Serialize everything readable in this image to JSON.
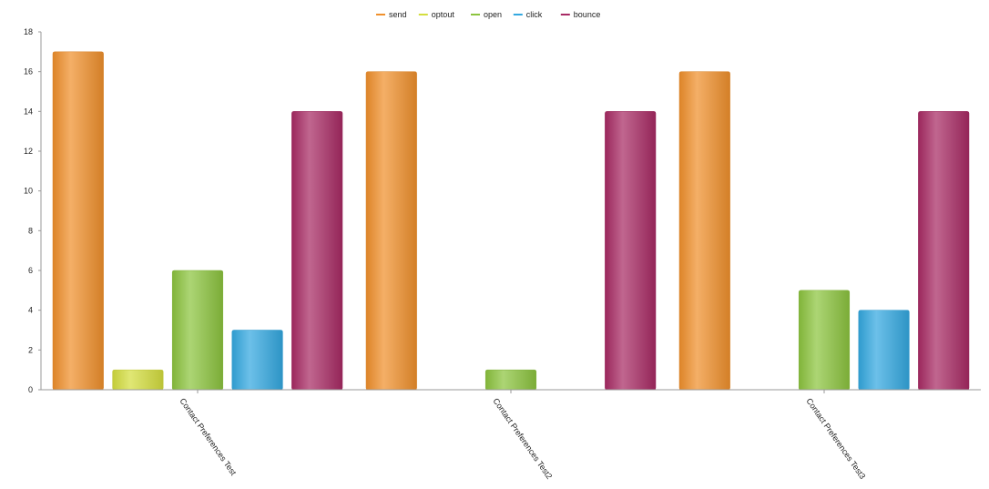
{
  "chart_data": {
    "type": "bar",
    "title": "",
    "xlabel": "",
    "ylabel": "",
    "ylim": [
      0,
      18
    ],
    "yticks": [
      0,
      2,
      4,
      6,
      8,
      10,
      12,
      14,
      16,
      18
    ],
    "grid": false,
    "legend_position": "top-center",
    "categories": [
      "Contact Preferences Test",
      "Contact Preferences Test2",
      "Contact Preferences Test3"
    ],
    "series": [
      {
        "name": "send",
        "color": "#f0902c",
        "values": [
          17,
          16,
          16
        ]
      },
      {
        "name": "optout",
        "color": "#d4de3e",
        "values": [
          1,
          0,
          0
        ]
      },
      {
        "name": "open",
        "color": "#8cc43e",
        "values": [
          6,
          1,
          5
        ]
      },
      {
        "name": "click",
        "color": "#33a8e0",
        "values": [
          3,
          0,
          4
        ]
      },
      {
        "name": "bounce",
        "color": "#a82a64",
        "values": [
          14,
          14,
          14
        ]
      }
    ]
  }
}
